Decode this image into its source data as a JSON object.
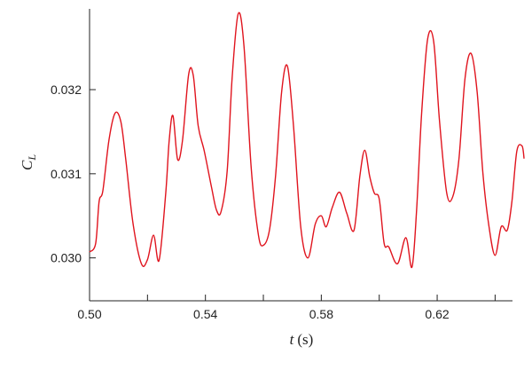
{
  "chart_data": {
    "type": "line",
    "title": "",
    "xlabel": {
      "symbol": "t",
      "unit": "(s)"
    },
    "ylabel": {
      "symbol": "C",
      "subscript": "L"
    },
    "xlim": [
      0.5,
      0.646
    ],
    "ylim": [
      0.02949,
      0.03296
    ],
    "x_ticks": [
      0.5,
      0.52,
      0.54,
      0.56,
      0.58,
      0.6,
      0.62,
      0.64
    ],
    "x_tick_labels": [
      "0.50",
      "",
      "0.54",
      "",
      "0.58",
      "",
      "0.62",
      ""
    ],
    "y_ticks": [
      0.03,
      0.031,
      0.032
    ],
    "y_tick_labels": [
      "0.030",
      "0.031",
      "0.032"
    ],
    "grid": false,
    "series": [
      {
        "color": "#e0141e",
        "points": [
          [
            0.5,
            0.03007
          ],
          [
            0.5021,
            0.03017
          ],
          [
            0.5033,
            0.03067
          ],
          [
            0.5046,
            0.0308
          ],
          [
            0.5067,
            0.0314
          ],
          [
            0.5088,
            0.03172
          ],
          [
            0.5108,
            0.03162
          ],
          [
            0.5125,
            0.03117
          ],
          [
            0.515,
            0.03041
          ],
          [
            0.5179,
            0.02993
          ],
          [
            0.52,
            0.02998
          ],
          [
            0.5221,
            0.03027
          ],
          [
            0.524,
            0.02997
          ],
          [
            0.5263,
            0.03077
          ],
          [
            0.5275,
            0.0314
          ],
          [
            0.5288,
            0.03169
          ],
          [
            0.5304,
            0.03117
          ],
          [
            0.5321,
            0.0314
          ],
          [
            0.5342,
            0.03218
          ],
          [
            0.5358,
            0.03217
          ],
          [
            0.5375,
            0.03157
          ],
          [
            0.5396,
            0.03127
          ],
          [
            0.5421,
            0.03084
          ],
          [
            0.5438,
            0.03057
          ],
          [
            0.5454,
            0.03055
          ],
          [
            0.5475,
            0.03103
          ],
          [
            0.5492,
            0.03213
          ],
          [
            0.5513,
            0.0329
          ],
          [
            0.5533,
            0.03252
          ],
          [
            0.5558,
            0.03107
          ],
          [
            0.5583,
            0.03027
          ],
          [
            0.56,
            0.03015
          ],
          [
            0.5621,
            0.03033
          ],
          [
            0.5642,
            0.03097
          ],
          [
            0.5663,
            0.03197
          ],
          [
            0.5683,
            0.03228
          ],
          [
            0.5704,
            0.03157
          ],
          [
            0.5729,
            0.03037
          ],
          [
            0.5754,
            0.03
          ],
          [
            0.5779,
            0.0304
          ],
          [
            0.58,
            0.0305
          ],
          [
            0.5817,
            0.03037
          ],
          [
            0.5838,
            0.0306
          ],
          [
            0.5863,
            0.03078
          ],
          [
            0.5888,
            0.03053
          ],
          [
            0.5913,
            0.03033
          ],
          [
            0.5933,
            0.03097
          ],
          [
            0.595,
            0.03128
          ],
          [
            0.5967,
            0.03097
          ],
          [
            0.5983,
            0.03077
          ],
          [
            0.6,
            0.0307
          ],
          [
            0.6017,
            0.03017
          ],
          [
            0.6033,
            0.03013
          ],
          [
            0.6063,
            0.02993
          ],
          [
            0.6092,
            0.03024
          ],
          [
            0.6113,
            0.02989
          ],
          [
            0.6129,
            0.03057
          ],
          [
            0.6146,
            0.0317
          ],
          [
            0.6167,
            0.0326
          ],
          [
            0.6188,
            0.03257
          ],
          [
            0.6208,
            0.03163
          ],
          [
            0.6233,
            0.03077
          ],
          [
            0.6254,
            0.03073
          ],
          [
            0.6275,
            0.03117
          ],
          [
            0.6296,
            0.03213
          ],
          [
            0.6317,
            0.03243
          ],
          [
            0.6338,
            0.03197
          ],
          [
            0.6358,
            0.031
          ],
          [
            0.6379,
            0.03037
          ],
          [
            0.64,
            0.03003
          ],
          [
            0.6421,
            0.03037
          ],
          [
            0.6442,
            0.03033
          ],
          [
            0.6458,
            0.03067
          ],
          [
            0.6475,
            0.03127
          ],
          [
            0.6493,
            0.03133
          ],
          [
            0.65,
            0.03118
          ]
        ]
      }
    ]
  }
}
